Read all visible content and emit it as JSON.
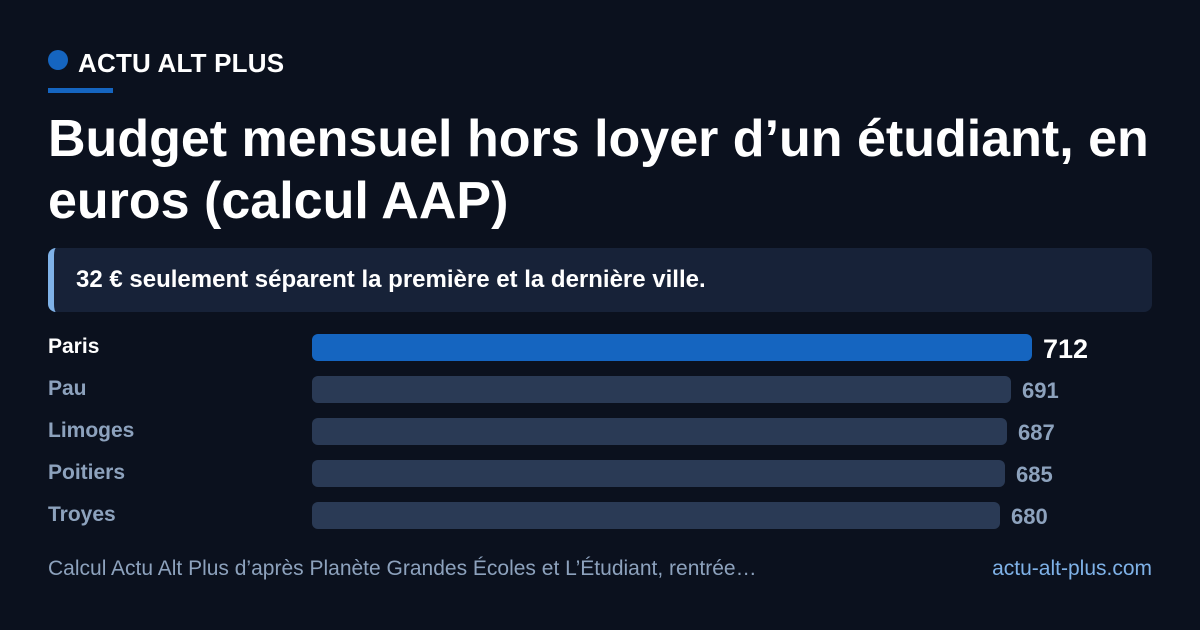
{
  "header": {
    "brand": "ACTU ALT PLUS",
    "title": "Budget mensuel hors loyer d’un étudiant, en euros (calcul AAP)"
  },
  "callout": {
    "text": "32 € seulement séparent la première et la dernière ville."
  },
  "footer": {
    "source": "Calcul Actu Alt Plus d’après Planète Grandes Écoles et L’Étudiant, rentrée…",
    "site": "actu-alt-plus.com"
  },
  "colors": {
    "background": "#0b111e",
    "accent": "#1565c0",
    "bar_muted": "#2a3a55",
    "callout_bg": "#172238",
    "callout_border": "#7fb2e8",
    "muted_text": "#8da2bd",
    "link": "#7fb2e8"
  },
  "chart_data": {
    "type": "bar",
    "orientation": "horizontal",
    "title": "Budget mensuel hors loyer d’un étudiant, en euros (calcul AAP)",
    "categories": [
      "Paris",
      "Pau",
      "Limoges",
      "Poitiers",
      "Troyes"
    ],
    "values": [
      712,
      691,
      687,
      685,
      680
    ],
    "highlight": "Paris",
    "grid": false
  }
}
